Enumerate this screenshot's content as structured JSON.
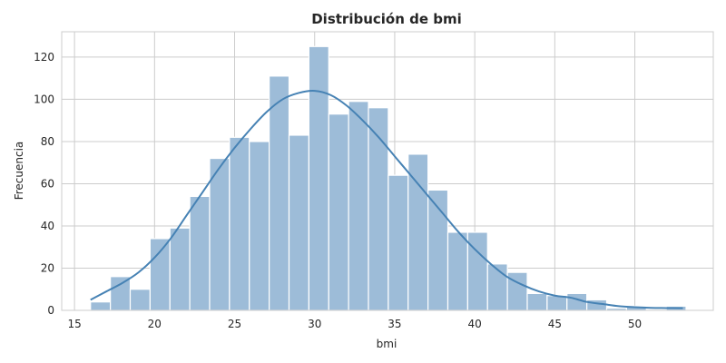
{
  "chart_data": {
    "type": "bar",
    "title": "Distribución de bmi",
    "xlabel": "bmi",
    "ylabel": "Frecuencia",
    "xlim": [
      14.2,
      54.9
    ],
    "ylim": [
      0,
      132
    ],
    "xticks": [
      15,
      20,
      25,
      30,
      35,
      40,
      45,
      50
    ],
    "yticks": [
      0,
      20,
      40,
      60,
      80,
      100,
      120
    ],
    "grid": true,
    "bar_color": "#9dbcd8",
    "kde_color": "#4682b4",
    "bin_width": 1.24,
    "bins": [
      {
        "start": 16.0,
        "count": 4
      },
      {
        "start": 17.24,
        "count": 16
      },
      {
        "start": 18.48,
        "count": 10
      },
      {
        "start": 19.72,
        "count": 34
      },
      {
        "start": 20.96,
        "count": 39
      },
      {
        "start": 22.2,
        "count": 54
      },
      {
        "start": 23.44,
        "count": 72
      },
      {
        "start": 24.68,
        "count": 82
      },
      {
        "start": 25.92,
        "count": 80
      },
      {
        "start": 27.16,
        "count": 111
      },
      {
        "start": 28.4,
        "count": 83
      },
      {
        "start": 29.64,
        "count": 125
      },
      {
        "start": 30.88,
        "count": 93
      },
      {
        "start": 32.12,
        "count": 99
      },
      {
        "start": 33.36,
        "count": 96
      },
      {
        "start": 34.6,
        "count": 64
      },
      {
        "start": 35.84,
        "count": 74
      },
      {
        "start": 37.08,
        "count": 57
      },
      {
        "start": 38.32,
        "count": 37
      },
      {
        "start": 39.56,
        "count": 37
      },
      {
        "start": 40.8,
        "count": 22
      },
      {
        "start": 42.04,
        "count": 18
      },
      {
        "start": 43.28,
        "count": 8
      },
      {
        "start": 44.52,
        "count": 7
      },
      {
        "start": 45.76,
        "count": 8
      },
      {
        "start": 47.0,
        "count": 5
      },
      {
        "start": 48.24,
        "count": 1
      },
      {
        "start": 49.48,
        "count": 2
      },
      {
        "start": 50.72,
        "count": 0
      },
      {
        "start": 51.96,
        "count": 2
      }
    ],
    "kde": {
      "x": [
        16,
        17,
        18,
        19,
        20,
        21,
        22,
        23,
        24,
        25,
        26,
        27,
        28,
        29,
        30,
        31,
        32,
        33,
        34,
        35,
        36,
        37,
        38,
        39,
        40,
        41,
        42,
        43,
        44,
        45,
        46,
        47,
        48,
        49,
        50,
        51,
        52,
        53
      ],
      "y": [
        5,
        9,
        13,
        18,
        25,
        34,
        45,
        56,
        67,
        77,
        86,
        94,
        100,
        103,
        104,
        102,
        97,
        90,
        82,
        73,
        64,
        55,
        46,
        37,
        29,
        22,
        16,
        12,
        9,
        7,
        6,
        4,
        3,
        2,
        1.5,
        1.2,
        1.1,
        1
      ]
    }
  }
}
